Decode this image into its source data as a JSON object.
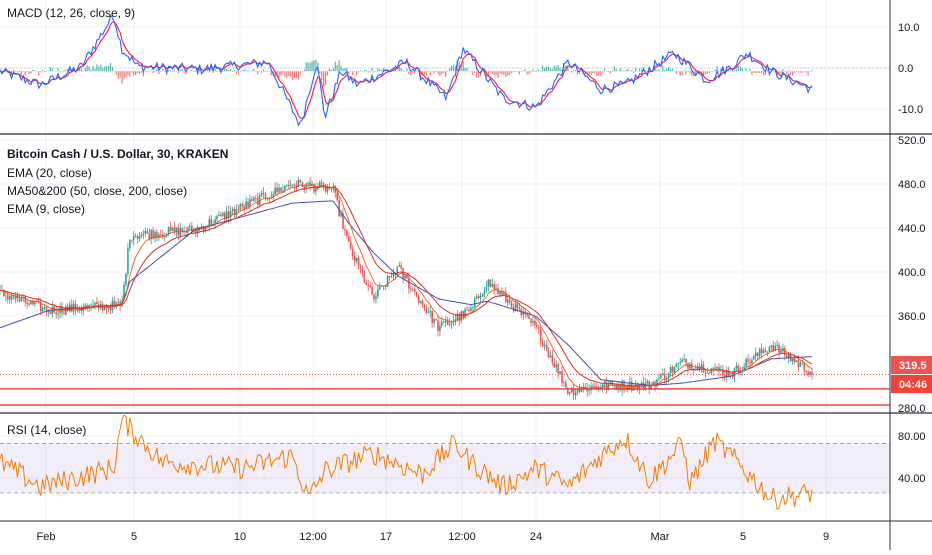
{
  "colors": {
    "up": "#26a69a",
    "down": "#ef5350",
    "ema20": "#d32f2f",
    "ma200": "#3f51b5",
    "ema9": "#e65100",
    "macd_line": "#2962ff",
    "signal_line": "#ff1744",
    "rsi_line": "#f57c00",
    "rsi_band": "#7e57c2",
    "grid": "#eef0f3",
    "last_price_badge": "#ef5350",
    "countdown_badge": "#f44336",
    "support_line": "#e53935"
  },
  "macd": {
    "legend": "MACD (12, 26, close, 9)",
    "axis_ticks": [
      "10.0",
      "0.0",
      "-10.0"
    ]
  },
  "price": {
    "legend_title": "Bitcoin Cash / U.S. Dollar, 30, KRAKEN",
    "legend_lines": [
      "EMA (20, close)",
      "MA50&200 (50, close, 200, close)",
      "EMA (9, close)"
    ],
    "axis_ticks": [
      "520.0",
      "480.0",
      "440.0",
      "400.0",
      "360.0",
      "280.0"
    ],
    "last_price_label": "319.5",
    "countdown_label": "04:46"
  },
  "rsi": {
    "legend": "RSI (14, close)",
    "axis_ticks": [
      "80.00",
      "40.00"
    ]
  },
  "time_axis": {
    "labels": [
      "Feb",
      "5",
      "10",
      "12:00",
      "17",
      "12:00",
      "24",
      "Mar",
      "5",
      "9"
    ]
  },
  "chart_data": [
    {
      "type": "line",
      "title": "MACD (12, 26, close, 9)",
      "series": [
        {
          "name": "MACD"
        },
        {
          "name": "Signal"
        },
        {
          "name": "Histogram"
        }
      ],
      "anchors_x": [
        0,
        0.05,
        0.1,
        0.14,
        0.15,
        0.17,
        0.25,
        0.33,
        0.37,
        0.39,
        0.4,
        0.42,
        0.44,
        0.5,
        0.55,
        0.57,
        0.62,
        0.66,
        0.7,
        0.74,
        0.77,
        0.83,
        0.87,
        0.9,
        0.92,
        0.95,
        1.0
      ],
      "anchors_y": [
        0.0,
        -3.0,
        1.0,
        12.5,
        5.0,
        1.0,
        0.5,
        2.0,
        -12.0,
        2.0,
        -10.0,
        0.0,
        -3.0,
        2.0,
        -6.0,
        5.0,
        -6.0,
        -8.0,
        2.0,
        -4.0,
        -3.0,
        4.0,
        -2.0,
        1.0,
        4.0,
        0.0,
        -4.0
      ],
      "ylim": [
        -13,
        14
      ]
    },
    {
      "type": "line",
      "title": "Bitcoin Cash / U.S. Dollar, 30, KRAKEN",
      "series": [
        {
          "name": "EMA (20, close)"
        },
        {
          "name": "MA50&200 (50, close, 200, close)"
        },
        {
          "name": "EMA (9, close)"
        }
      ],
      "anchors_x": [
        0,
        0.06,
        0.15,
        0.16,
        0.24,
        0.36,
        0.41,
        0.43,
        0.46,
        0.49,
        0.54,
        0.58,
        0.6,
        0.66,
        0.7,
        0.74,
        0.8,
        0.84,
        0.9,
        0.95,
        1.0
      ],
      "anchors_y": [
        390,
        375,
        380,
        440,
        445,
        485,
        480,
        430,
        385,
        412,
        360,
        375,
        400,
        360,
        305,
        310,
        310,
        330,
        320,
        345,
        321
      ],
      "ma200_anchors_y": [
        360,
        375,
        380,
        400,
        445,
        468,
        470,
        450,
        425,
        405,
        385,
        380,
        383,
        370,
        345,
        315,
        310,
        312,
        318,
        333,
        335
      ],
      "last_price": 319.5,
      "support_levels": [
        307,
        293
      ],
      "ylim": [
        287,
        527
      ]
    },
    {
      "type": "line",
      "title": "RSI (14, close)",
      "series": [
        {
          "name": "RSI"
        }
      ],
      "anchors_x": [
        0,
        0.05,
        0.14,
        0.15,
        0.2,
        0.3,
        0.36,
        0.38,
        0.4,
        0.46,
        0.52,
        0.56,
        0.58,
        0.62,
        0.66,
        0.7,
        0.74,
        0.77,
        0.8,
        0.84,
        0.85,
        0.88,
        0.9,
        0.93,
        0.95,
        1.0
      ],
      "anchors_y": [
        55,
        35,
        50,
        89,
        55,
        50,
        60,
        25,
        48,
        62,
        45,
        70,
        55,
        35,
        50,
        35,
        60,
        75,
        40,
        70,
        38,
        72,
        60,
        40,
        25,
        30
      ],
      "band": [
        30,
        70
      ],
      "ylim": [
        8,
        94
      ]
    }
  ]
}
